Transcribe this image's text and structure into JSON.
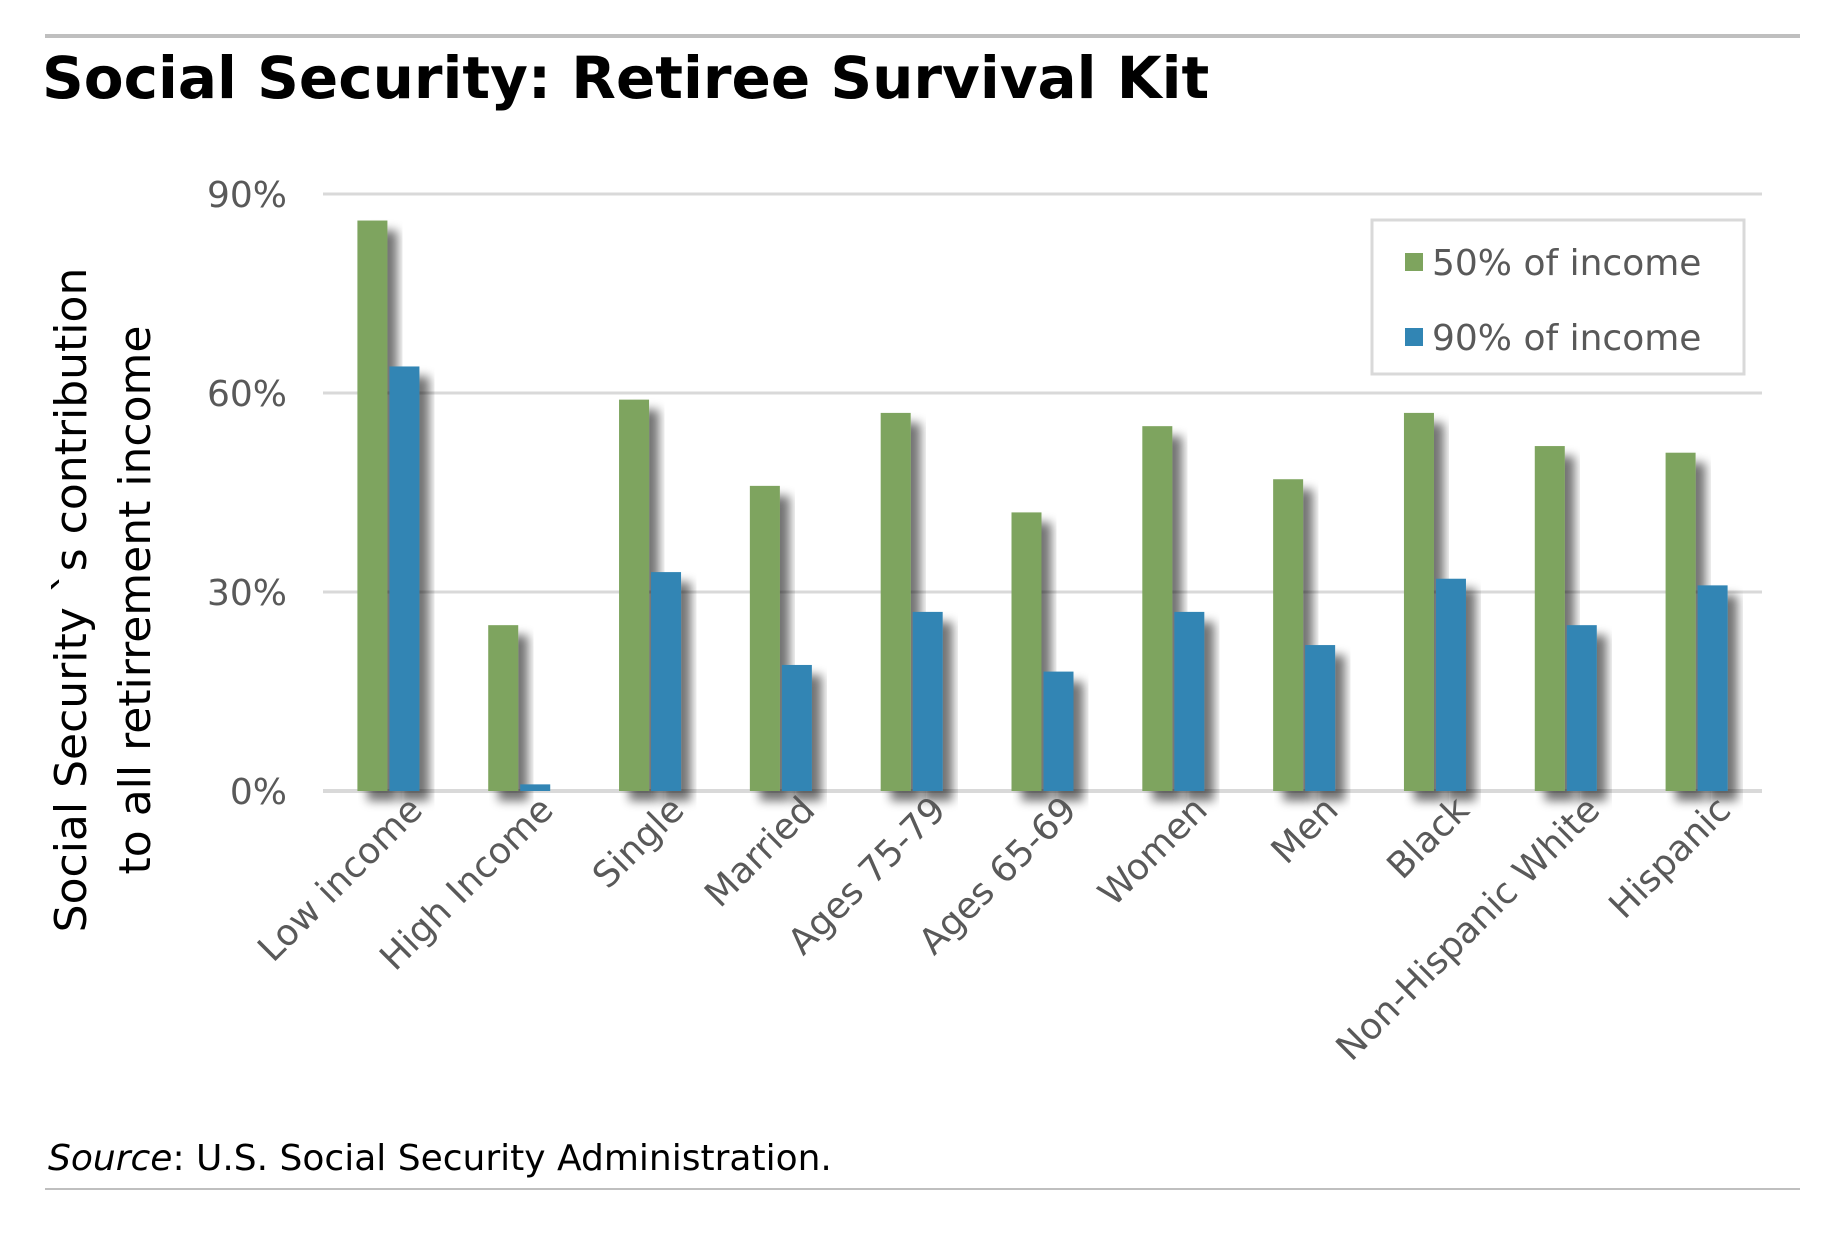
{
  "header": {
    "title": "Social Security: Retiree Survival Kit"
  },
  "footer": {
    "source_label": "Source",
    "source_text": ": U.S. Social Security Administration."
  },
  "colors": {
    "series_50": "#7ea45e",
    "series_90": "#3185b4",
    "grid": "#d9d9d9",
    "rule": "#bfbfbf"
  },
  "chart_data": {
    "type": "bar",
    "title": "Social Security: Retiree Survival Kit",
    "ylabel_lines": [
      "Social Security `s contribution",
      "to all retirrement income"
    ],
    "xlabel": "",
    "ylim": [
      0,
      90
    ],
    "yticks": [
      0,
      30,
      60,
      90
    ],
    "ytick_labels": [
      "0%",
      "30%",
      "60%",
      "90%"
    ],
    "grid": true,
    "legend_position": "top-right",
    "categories": [
      "Low income",
      "High Income",
      "Single",
      "Married",
      "Ages 75-79",
      "Ages 65-69",
      "Women",
      "Men",
      "Black",
      "Non-Hispanic White",
      "Hispanic"
    ],
    "series": [
      {
        "name": "50% of income",
        "values": [
          86,
          25,
          59,
          46,
          57,
          42,
          55,
          47,
          57,
          52,
          51
        ]
      },
      {
        "name": "90% of income",
        "values": [
          64,
          1,
          33,
          19,
          27,
          18,
          27,
          22,
          32,
          25,
          31
        ]
      }
    ]
  }
}
